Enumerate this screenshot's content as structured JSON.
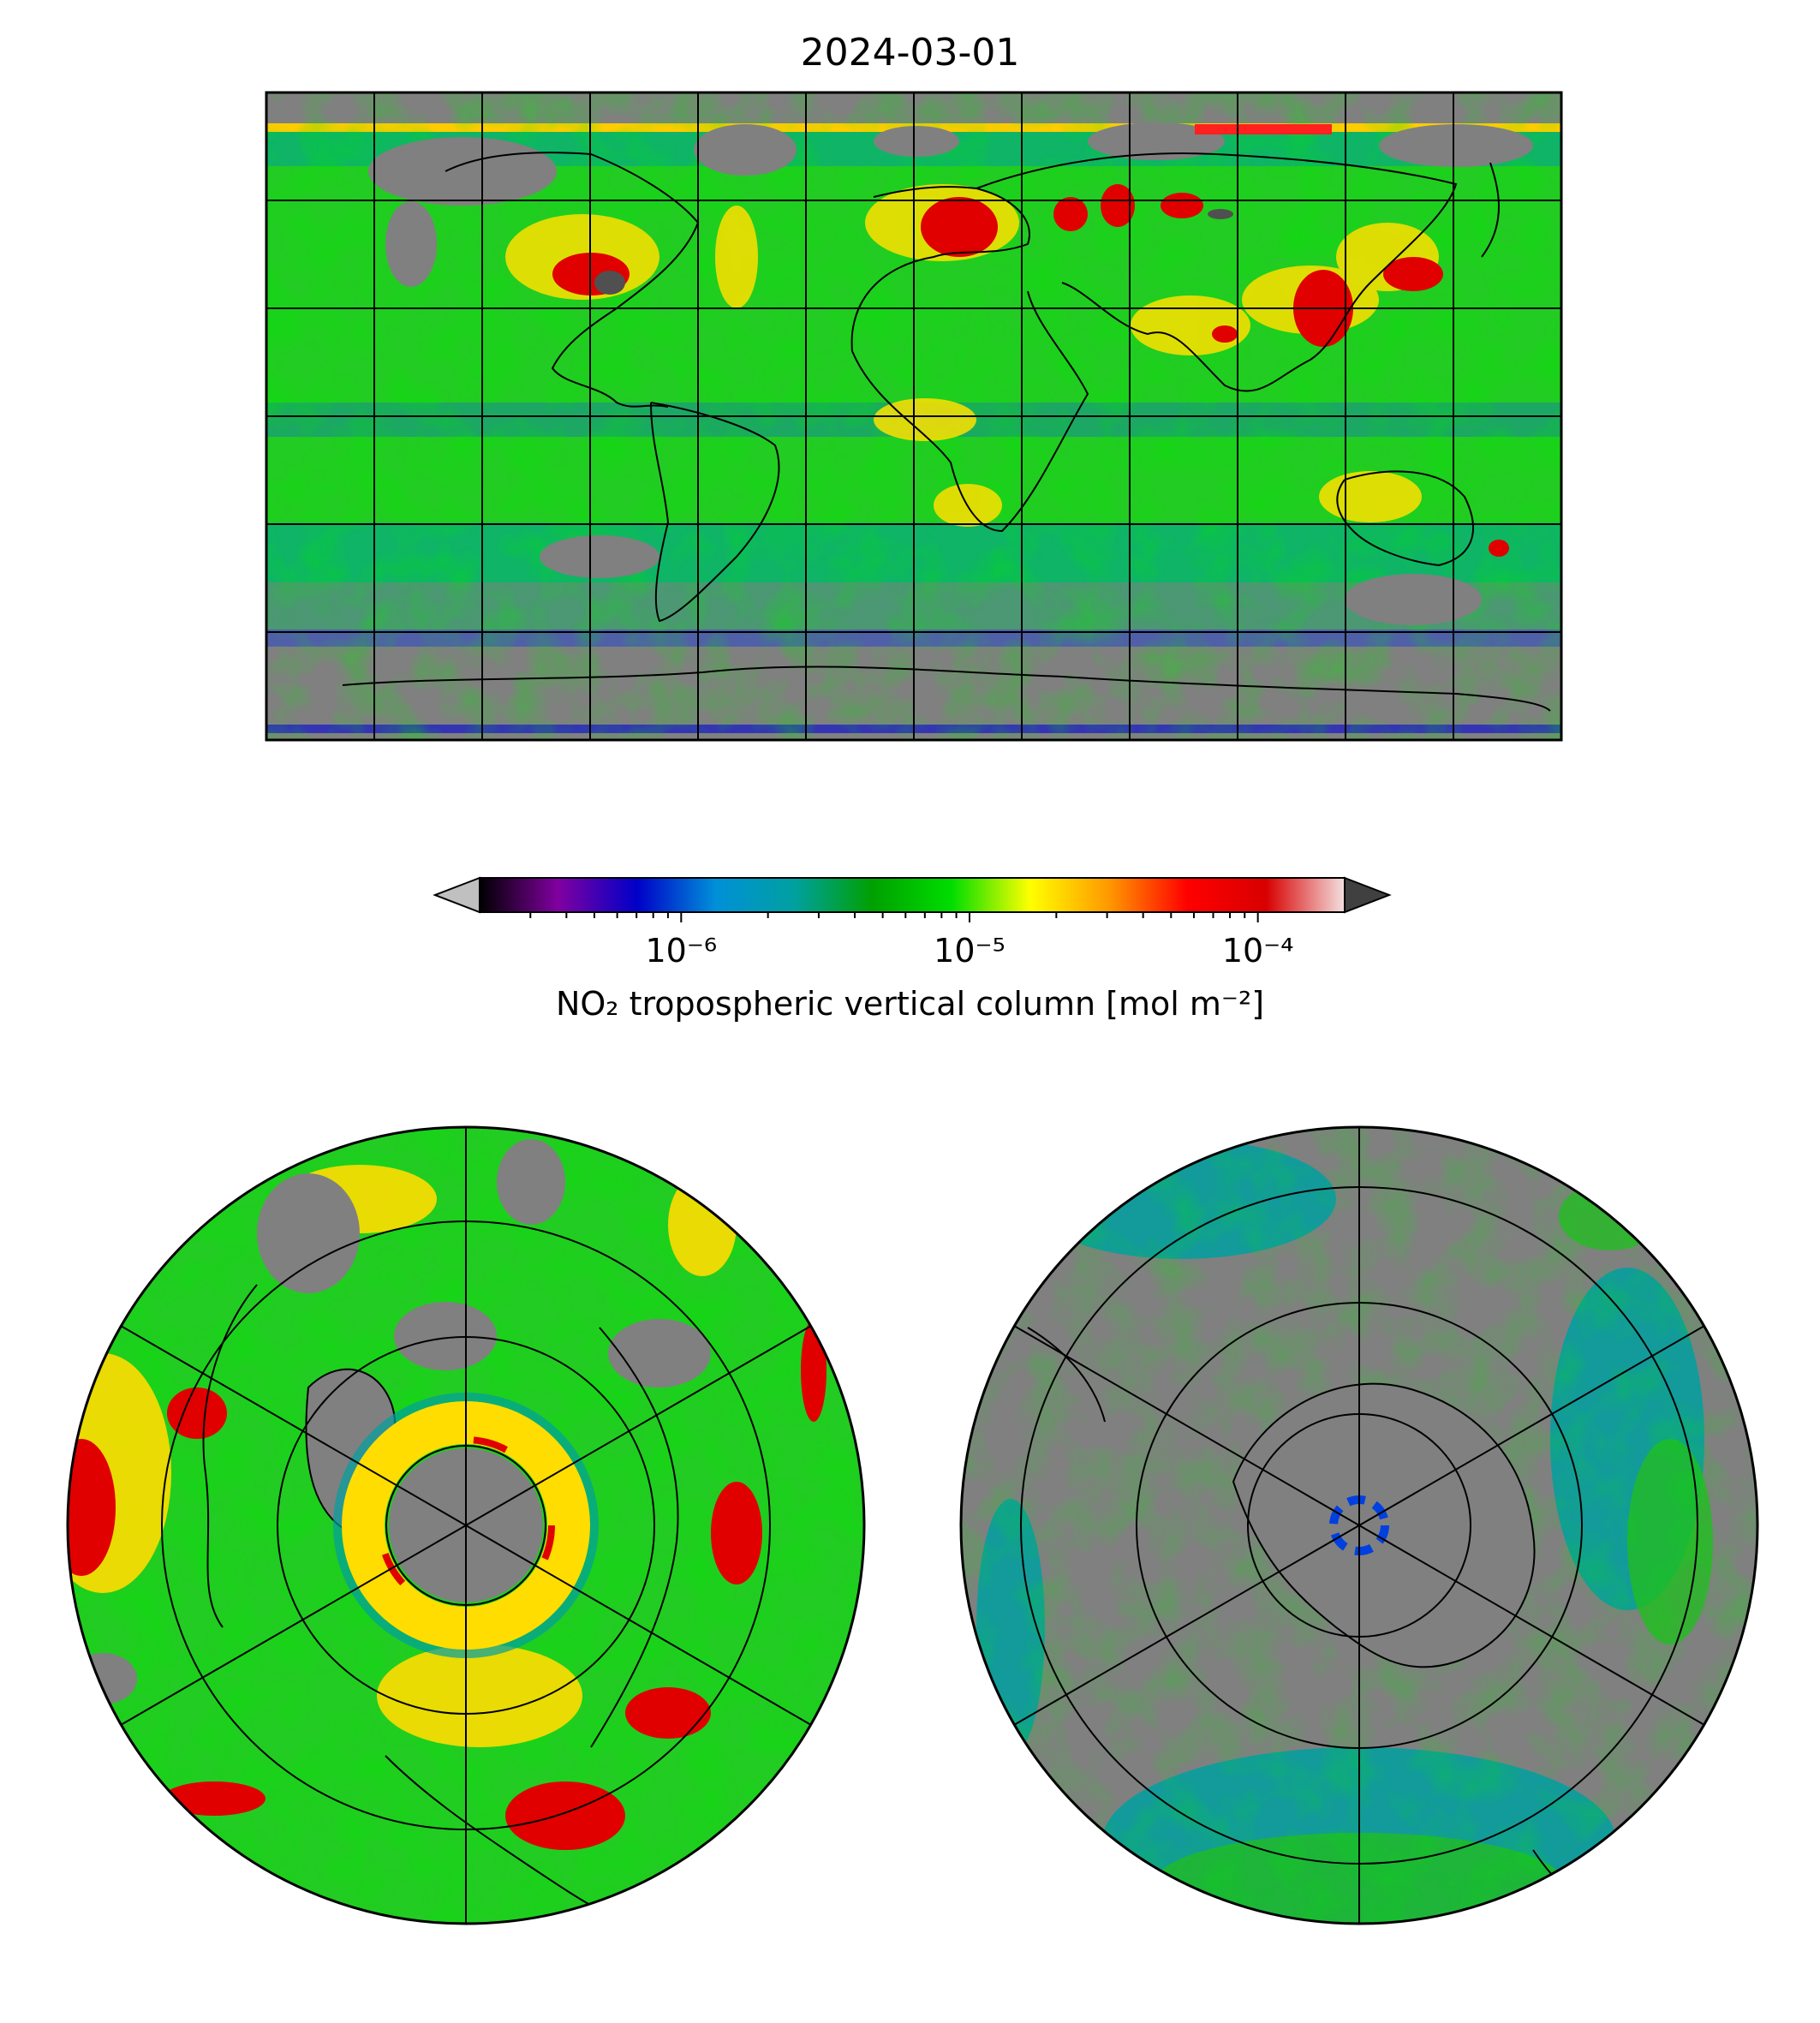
{
  "title": "2024-03-01",
  "colorbar": {
    "label": "NO₂ tropospheric vertical column [mol m⁻²]",
    "scale": "log",
    "range": [
      2e-07,
      0.0002
    ],
    "extend": "both",
    "ticks": [
      {
        "value": 1e-06,
        "label": "10⁻⁶"
      },
      {
        "value": 1e-05,
        "label": "10⁻⁵"
      },
      {
        "value": 0.0001,
        "label": "10⁻⁴"
      }
    ],
    "stops": [
      "#000000",
      "#8000a0",
      "#0000c8",
      "#0090d8",
      "#00a0a0",
      "#00a000",
      "#00dd00",
      "#ffff00",
      "#ff9900",
      "#ff0000",
      "#d80000",
      "#f4e0e0"
    ],
    "under_color": "#c0c0c0",
    "over_color": "#404040"
  },
  "maps": {
    "global": {
      "projection": "plate-carree",
      "gridlines": true,
      "nodata_color": "#808080"
    },
    "north_polar": {
      "projection": "north-polar-stereographic",
      "gridlines": true
    },
    "south_polar": {
      "projection": "south-polar-stereographic",
      "gridlines": true
    }
  },
  "colors": {
    "nodata": "#808080",
    "low": "#00a0a0",
    "background": "#00cc00",
    "elevated": "#ffdd00",
    "high": "#e00000"
  }
}
